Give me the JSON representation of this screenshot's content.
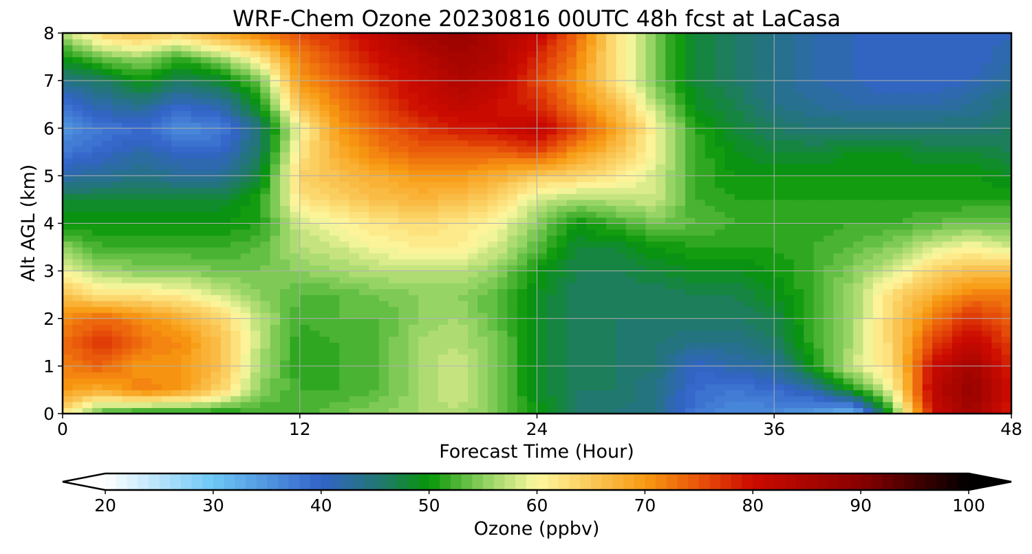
{
  "chart_data": {
    "type": "heatmap",
    "title": "WRF-Chem Ozone  20230816 00UTC 48h fcst at LaCasa",
    "xlabel": "Forecast Time (Hour)",
    "ylabel": "Alt AGL (km)",
    "xlim": [
      0,
      48
    ],
    "ylim": [
      0,
      8
    ],
    "xticks": [
      "0",
      "12",
      "24",
      "36",
      "48"
    ],
    "yticks": [
      "0",
      "1",
      "2",
      "3",
      "4",
      "5",
      "6",
      "7",
      "8"
    ],
    "grid": true,
    "colorbar": {
      "label": "Ozone  (ppbv)",
      "orientation": "horizontal",
      "placement": "bottom",
      "extend": "both",
      "vmin": 20,
      "vmax": 100,
      "ticks": [
        "20",
        "30",
        "40",
        "50",
        "60",
        "70",
        "80",
        "90",
        "100"
      ],
      "color_stops": [
        {
          "value": 20,
          "color": "#ffffff"
        },
        {
          "value": 30,
          "color": "#6dc7f5"
        },
        {
          "value": 40,
          "color": "#3363c9"
        },
        {
          "value": 46,
          "color": "#1f7a66"
        },
        {
          "value": 50,
          "color": "#079607"
        },
        {
          "value": 55,
          "color": "#8cd05f"
        },
        {
          "value": 60,
          "color": "#fdf8a0"
        },
        {
          "value": 70,
          "color": "#f89a12"
        },
        {
          "value": 75,
          "color": "#e8530a"
        },
        {
          "value": 80,
          "color": "#cc0a00"
        },
        {
          "value": 90,
          "color": "#880000"
        },
        {
          "value": 100,
          "color": "#000000"
        }
      ]
    },
    "x": [
      0,
      2,
      4,
      6,
      8,
      10,
      12,
      14,
      16,
      18,
      20,
      22,
      24,
      26,
      28,
      30,
      32,
      34,
      36,
      38,
      40,
      42,
      44,
      46,
      48
    ],
    "y": [
      0,
      0.5,
      1,
      1.5,
      2,
      2.5,
      3,
      3.5,
      4,
      4.5,
      5,
      5.5,
      6,
      6.5,
      7,
      7.5,
      8
    ],
    "z": [
      [
        62,
        52,
        50,
        50,
        50,
        52,
        52,
        54,
        55,
        56,
        57,
        54,
        50,
        46,
        45,
        44,
        38,
        36,
        36,
        34,
        31,
        52,
        80,
        86,
        78
      ],
      [
        70,
        68,
        72,
        70,
        64,
        55,
        52,
        52,
        53,
        56,
        58,
        54,
        49,
        46,
        46,
        44,
        39,
        38,
        39,
        42,
        50,
        60,
        82,
        88,
        80
      ],
      [
        72,
        74,
        70,
        70,
        66,
        56,
        51,
        52,
        53,
        56,
        58,
        54,
        49,
        46,
        46,
        45,
        40,
        42,
        43,
        50,
        58,
        63,
        80,
        86,
        78
      ],
      [
        73,
        77,
        73,
        71,
        66,
        57,
        51,
        52,
        53,
        56,
        57,
        54,
        49,
        46,
        46,
        45,
        44,
        44,
        46,
        52,
        56,
        64,
        76,
        82,
        76
      ],
      [
        71,
        74,
        71,
        68,
        64,
        57,
        52,
        53,
        53,
        55,
        56,
        53,
        49,
        46,
        46,
        46,
        46,
        46,
        47,
        52,
        56,
        64,
        72,
        78,
        74
      ],
      [
        66,
        62,
        62,
        61,
        58,
        55,
        53,
        53,
        54,
        55,
        55,
        53,
        49,
        46,
        46,
        46,
        47,
        47,
        49,
        52,
        56,
        63,
        68,
        72,
        72
      ],
      [
        60,
        56,
        55,
        55,
        54,
        54,
        55,
        56,
        57,
        57,
        57,
        55,
        50,
        47,
        47,
        48,
        49,
        49,
        50,
        52,
        55,
        58,
        64,
        66,
        66
      ],
      [
        55,
        52,
        52,
        52,
        52,
        53,
        57,
        58,
        60,
        61,
        61,
        58,
        53,
        48,
        48,
        50,
        51,
        51,
        51,
        52,
        53,
        55,
        58,
        60,
        58
      ],
      [
        50,
        50,
        50,
        50,
        50,
        51,
        58,
        60,
        62,
        63,
        62,
        60,
        55,
        50,
        52,
        54,
        53,
        52,
        52,
        51,
        52,
        52,
        53,
        54,
        54
      ],
      [
        48,
        48,
        48,
        48,
        48,
        51,
        62,
        64,
        66,
        67,
        66,
        64,
        58,
        56,
        57,
        58,
        52,
        51,
        51,
        51,
        51,
        51,
        51,
        51,
        51
      ],
      [
        42,
        43,
        44,
        43,
        43,
        48,
        64,
        66,
        68,
        70,
        70,
        68,
        65,
        64,
        62,
        58,
        52,
        50,
        50,
        50,
        50,
        50,
        50,
        50,
        49
      ],
      [
        38,
        40,
        42,
        40,
        40,
        46,
        62,
        68,
        72,
        74,
        74,
        74,
        76,
        70,
        66,
        60,
        52,
        49,
        48,
        48,
        49,
        49,
        48,
        48,
        47
      ],
      [
        35,
        38,
        39,
        36,
        37,
        45,
        60,
        70,
        74,
        77,
        79,
        80,
        82,
        76,
        69,
        60,
        51,
        48,
        46,
        45,
        45,
        45,
        45,
        45,
        46
      ],
      [
        38,
        42,
        44,
        40,
        42,
        50,
        66,
        72,
        76,
        80,
        82,
        80,
        78,
        72,
        66,
        57,
        49,
        47,
        44,
        43,
        42,
        42,
        42,
        43,
        45
      ],
      [
        44,
        46,
        50,
        46,
        48,
        54,
        70,
        74,
        78,
        81,
        84,
        82,
        76,
        70,
        62,
        54,
        48,
        46,
        44,
        42,
        41,
        40,
        40,
        41,
        43
      ],
      [
        50,
        54,
        56,
        52,
        56,
        62,
        72,
        76,
        80,
        83,
        86,
        84,
        78,
        72,
        62,
        54,
        48,
        46,
        44,
        42,
        41,
        40,
        40,
        40,
        42
      ],
      [
        56,
        64,
        66,
        64,
        68,
        72,
        76,
        78,
        82,
        86,
        88,
        84,
        82,
        74,
        62,
        54,
        48,
        46,
        44,
        42,
        41,
        41,
        40,
        40,
        41
      ]
    ]
  }
}
